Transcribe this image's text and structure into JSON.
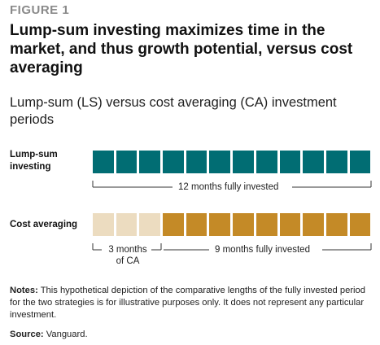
{
  "figure_label": "FIGURE 1",
  "chart_data": {
    "type": "timeline-blocks",
    "title": "Lump-sum investing maximizes time in the market, and thus growth potential, versus cost averaging",
    "subtitle": "Lump-sum (LS) versus cost averaging (CA) investment periods",
    "rows": [
      {
        "label": "Lump-sum investing",
        "months": 12,
        "segments": [
          {
            "count": 12,
            "state": "invested",
            "color": "#016d73"
          }
        ],
        "brackets": [
          {
            "text": "12 months fully invested",
            "from": 0,
            "to": 12
          }
        ]
      },
      {
        "label": "Cost averaging",
        "months": 12,
        "segments": [
          {
            "count": 3,
            "state": "averaging",
            "color": "#ecdcc0"
          },
          {
            "count": 9,
            "state": "invested",
            "color": "#c48a27"
          }
        ],
        "brackets": [
          {
            "text": "3 months of CA",
            "from": 0,
            "to": 3
          },
          {
            "text": "9 months fully invested",
            "from": 3,
            "to": 12
          }
        ]
      }
    ]
  },
  "notes_label": "Notes:",
  "notes_text": "This hypothetical depiction of the comparative lengths of the fully invested period for the two strategies is for illustrative purposes only. It does not represent any particular investment.",
  "source_label": "Source:",
  "source_text": "Vanguard.",
  "colors": {
    "teal": "#016d73",
    "gold": "#c48a27",
    "light_gold": "#ecdcc0",
    "gray_label": "#8a8a8a"
  }
}
